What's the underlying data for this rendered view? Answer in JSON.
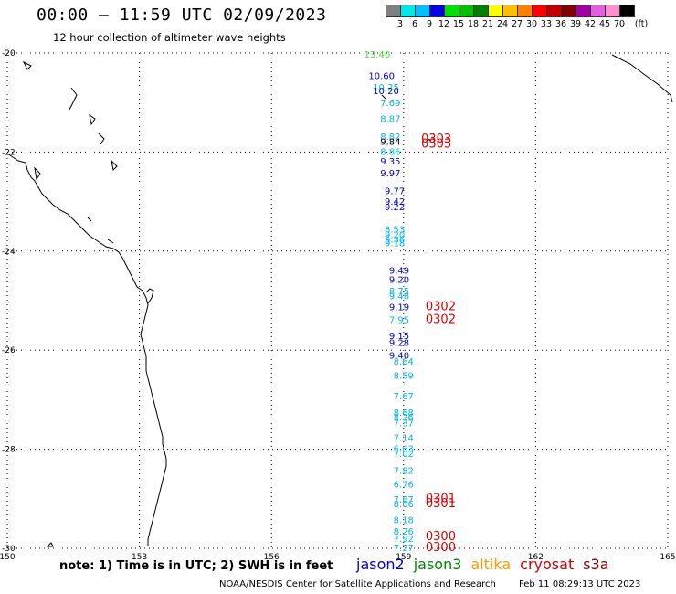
{
  "title": "00:00 – 11:59 UTC 02/09/2023",
  "subtitle": "12 hour collection of altimeter wave heights",
  "legend": {
    "colors": [
      "#808080",
      "#00e8e8",
      "#00bfff",
      "#0000e0",
      "#00e000",
      "#00c000",
      "#008000",
      "#ffff00",
      "#ffc000",
      "#ff8000",
      "#ff0000",
      "#c00000",
      "#800000",
      "#a000a0",
      "#e060e0",
      "#ff90d0",
      "#000000"
    ],
    "labels": [
      "3",
      "6",
      "9",
      "12",
      "15",
      "18",
      "21",
      "24",
      "27",
      "30",
      "33",
      "36",
      "39",
      "42",
      "45",
      "70"
    ],
    "unit": "(ft)"
  },
  "map": {
    "lon_ticks": [
      "150",
      "153",
      "156",
      "159",
      "162",
      "165"
    ],
    "lat_ticks": [
      "-20",
      "-22",
      "-24",
      "-26",
      "-28",
      "-30"
    ],
    "lon_range": [
      150,
      165
    ],
    "lat_range": [
      -30,
      -20
    ],
    "grid": true
  },
  "points": [
    {
      "lat": -20.02,
      "lon": 158.4,
      "v": "13.40",
      "c": "#44dd44"
    },
    {
      "lat": -20.45,
      "lon": 158.5,
      "v": "10.60",
      "c": "#0000cc"
    },
    {
      "lat": -20.68,
      "lon": 158.6,
      "v": "10.25",
      "c": "#00b8e8"
    },
    {
      "lat": -20.76,
      "lon": 158.6,
      "v": "10.20",
      "c": "#0000cc"
    },
    {
      "lat": -21.0,
      "lon": 158.7,
      "v": "7.69",
      "c": "#00b8e8"
    },
    {
      "lat": -21.32,
      "lon": 158.7,
      "v": "8.87",
      "c": "#00b8e8"
    },
    {
      "lat": -21.68,
      "lon": 158.7,
      "v": "8.82",
      "c": "#00b8e8"
    },
    {
      "lat": -21.78,
      "lon": 158.7,
      "v": "9.84",
      "c": "#000000"
    },
    {
      "lat": -21.98,
      "lon": 158.7,
      "v": "8.86",
      "c": "#00b8e8"
    },
    {
      "lat": -22.18,
      "lon": 158.7,
      "v": "9.35",
      "c": "#0000cc"
    },
    {
      "lat": -22.42,
      "lon": 158.7,
      "v": "9.97",
      "c": "#0000cc"
    },
    {
      "lat": -22.78,
      "lon": 158.8,
      "v": "9.77",
      "c": "#0000cc"
    },
    {
      "lat": -22.99,
      "lon": 158.8,
      "v": "9.42",
      "c": "#0000cc"
    },
    {
      "lat": -23.1,
      "lon": 158.8,
      "v": "9.22",
      "c": "#0000cc"
    },
    {
      "lat": -23.55,
      "lon": 158.8,
      "v": "8.53",
      "c": "#00b8e8"
    },
    {
      "lat": -23.66,
      "lon": 158.8,
      "v": "9.20",
      "c": "#00b8e8"
    },
    {
      "lat": -23.75,
      "lon": 158.8,
      "v": "9.36",
      "c": "#00b8e8"
    },
    {
      "lat": -23.83,
      "lon": 158.8,
      "v": "9.18",
      "c": "#00b8e8"
    },
    {
      "lat": -24.38,
      "lon": 158.9,
      "v": "9.49",
      "c": "#0000cc"
    },
    {
      "lat": -24.57,
      "lon": 158.9,
      "v": "9.20",
      "c": "#0000cc"
    },
    {
      "lat": -24.8,
      "lon": 158.9,
      "v": "8.75",
      "c": "#00b8e8"
    },
    {
      "lat": -24.9,
      "lon": 158.9,
      "v": "9.48",
      "c": "#00b8e8"
    },
    {
      "lat": -25.12,
      "lon": 158.9,
      "v": "9.19",
      "c": "#0000cc"
    },
    {
      "lat": -25.38,
      "lon": 158.9,
      "v": "7.95",
      "c": "#00b8e8"
    },
    {
      "lat": -25.7,
      "lon": 158.9,
      "v": "9.15",
      "c": "#0000cc"
    },
    {
      "lat": -25.84,
      "lon": 158.9,
      "v": "9.28",
      "c": "#0000cc"
    },
    {
      "lat": -26.1,
      "lon": 158.9,
      "v": "9.40",
      "c": "#0000cc"
    },
    {
      "lat": -26.22,
      "lon": 159.0,
      "v": "8.64",
      "c": "#00b8e8"
    },
    {
      "lat": -26.5,
      "lon": 159.0,
      "v": "8.59",
      "c": "#00b8e8"
    },
    {
      "lat": -26.92,
      "lon": 159.0,
      "v": "7.67",
      "c": "#00b8e8"
    },
    {
      "lat": -27.25,
      "lon": 159.0,
      "v": "8.68",
      "c": "#00b8e8"
    },
    {
      "lat": -27.34,
      "lon": 159.0,
      "v": "8.26",
      "c": "#00b8e8"
    },
    {
      "lat": -27.46,
      "lon": 159.0,
      "v": "7.37",
      "c": "#00b8e8"
    },
    {
      "lat": -27.76,
      "lon": 159.0,
      "v": "7.14",
      "c": "#00b8e8"
    },
    {
      "lat": -27.98,
      "lon": 159.0,
      "v": "6.63",
      "c": "#00b8e8"
    },
    {
      "lat": -28.08,
      "lon": 159.0,
      "v": "7.02",
      "c": "#00b8e8"
    },
    {
      "lat": -28.42,
      "lon": 159.0,
      "v": "7.82",
      "c": "#00b8e8"
    },
    {
      "lat": -28.7,
      "lon": 159.0,
      "v": "6.76",
      "c": "#00b8e8"
    },
    {
      "lat": -29.0,
      "lon": 159.0,
      "v": "7.67",
      "c": "#00b8e8"
    },
    {
      "lat": -29.1,
      "lon": 159.0,
      "v": "8.06",
      "c": "#00b8e8"
    },
    {
      "lat": -29.42,
      "lon": 159.0,
      "v": "8.18",
      "c": "#00b8e8"
    },
    {
      "lat": -29.65,
      "lon": 159.0,
      "v": "8.26",
      "c": "#00b8e8"
    },
    {
      "lat": -29.8,
      "lon": 159.0,
      "v": "7.92",
      "c": "#00b8e8"
    },
    {
      "lat": -29.98,
      "lon": 159.0,
      "v": "7.27",
      "c": "#00b8e8"
    }
  ],
  "passes": [
    {
      "lat": -21.72,
      "lon": 159.4,
      "v": "0303",
      "c": "#e00000"
    },
    {
      "lat": -21.82,
      "lon": 159.4,
      "v": "0303",
      "c": "#e00000"
    },
    {
      "lat": -25.1,
      "lon": 159.5,
      "v": "0302",
      "c": "#e00000"
    },
    {
      "lat": -25.36,
      "lon": 159.5,
      "v": "0302",
      "c": "#e00000"
    },
    {
      "lat": -28.98,
      "lon": 159.5,
      "v": "0301",
      "c": "#e00000"
    },
    {
      "lat": -29.08,
      "lon": 159.5,
      "v": "0301",
      "c": "#e00000"
    },
    {
      "lat": -29.74,
      "lon": 159.5,
      "v": "0300",
      "c": "#e00000"
    },
    {
      "lat": -29.96,
      "lon": 159.5,
      "v": "0300",
      "c": "#e00000"
    }
  ],
  "note": "note:  1) Time is in UTC;  2) SWH is in feet",
  "satellites": [
    {
      "name": "jason2",
      "color": "#0000cc"
    },
    {
      "name": "jason3",
      "color": "#008800"
    },
    {
      "name": "altika",
      "color": "#ff9900"
    },
    {
      "name": "cryosat",
      "color": "#cc0000"
    },
    {
      "name": "s3a",
      "color": "#880000"
    }
  ],
  "footer": {
    "org": "NOAA/NESDIS Center for Satellite Applications and Research",
    "timestamp": "Feb 11 08:29:13 UTC 2023"
  }
}
